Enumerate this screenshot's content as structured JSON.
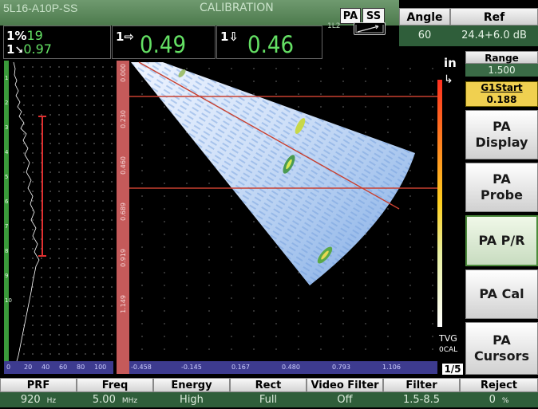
{
  "header": {
    "probe": "5L16-A10P-SS",
    "mode": "CALIBRATION",
    "pa_label": "PA",
    "ss_label": "SS",
    "l2_label": "1L2"
  },
  "readouts": {
    "r1_top": "1%",
    "r1_top_value": "19",
    "r1_bottom": "1",
    "r1_bottom_value": "0.97",
    "r2_prefix": "1⇨",
    "r2_value": "0.49",
    "r3_prefix": "1⇩",
    "r3_value": "0.46"
  },
  "right_panel": {
    "angle_label": "Angle",
    "angle_value": "60",
    "ref_label": "Ref",
    "ref_value": "24.4+6.0 dB",
    "range_label": "Range",
    "range_value": "1.500",
    "g1start_label": "G1Start",
    "g1start_value": "0.188",
    "unit": "in",
    "menu": [
      {
        "line1": "PA",
        "line2": "Display"
      },
      {
        "line1": "PA",
        "line2": "Probe"
      },
      {
        "line1": "PA P/R",
        "line2": ""
      },
      {
        "line1": "PA Cal",
        "line2": ""
      },
      {
        "line1": "PA",
        "line2": "Cursors"
      }
    ],
    "tvg": "TVG",
    "cal": "0CAL",
    "page": "1/5"
  },
  "ascan": {
    "axis_ticks": [
      "0",
      "20",
      "40",
      "60",
      "80",
      "100"
    ],
    "depth_ticks": [
      "1",
      "2",
      "3",
      "4",
      "5",
      "6",
      "7",
      "8",
      "9",
      "10"
    ]
  },
  "sscan": {
    "axis_ticks": [
      "-0.458",
      "-0.145",
      "0.167",
      "0.480",
      "0.793",
      "1.106"
    ],
    "depth_ticks": [
      "0.000",
      "0.230",
      "0.460",
      "0.689",
      "0.919",
      "1.149"
    ]
  },
  "bottom": [
    {
      "label": "PRF",
      "value": "920",
      "unit": "Hz"
    },
    {
      "label": "Freq",
      "value": "5.00",
      "unit": "MHz"
    },
    {
      "label": "Energy",
      "value": "High",
      "unit": ""
    },
    {
      "label": "Rect",
      "value": "Full",
      "unit": ""
    },
    {
      "label": "Video Filter",
      "value": "Off",
      "unit": ""
    },
    {
      "label": "Filter",
      "value": "1.5-8.5",
      "unit": ""
    },
    {
      "label": "Reject",
      "value": "0",
      "unit": "%"
    }
  ],
  "colors": {
    "accent_green": "#64e064",
    "panel_green": "#2f5e3a",
    "cursor_red": "#c84030",
    "axis_blue": "#3d3b8f"
  }
}
